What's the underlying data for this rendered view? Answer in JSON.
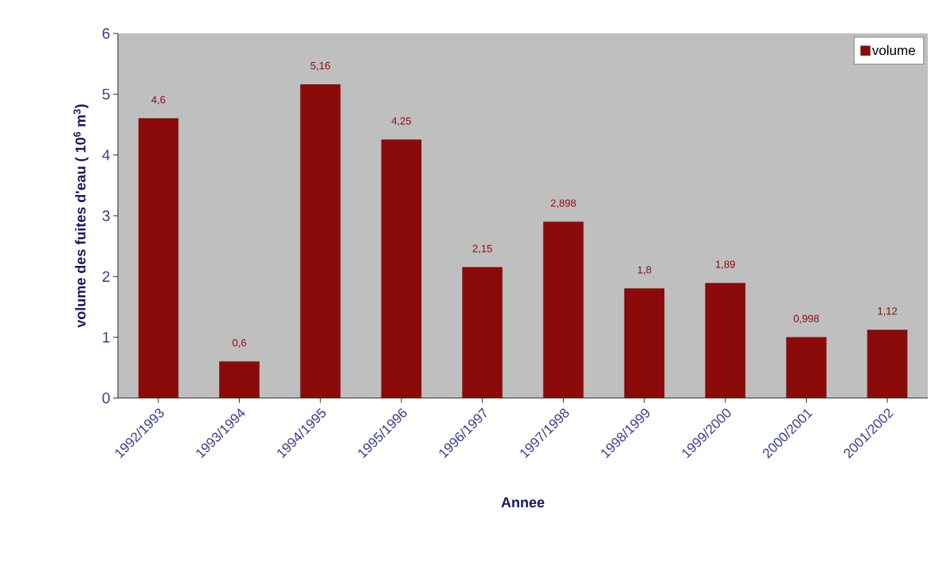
{
  "chart_data": {
    "type": "bar",
    "xlabel": "Annee",
    "ylabel": "volume des fuites d'eau ( 10$^{6}$ m$^{3}$)",
    "categories": [
      "1992/1993",
      "1993/1994",
      "1994/1995",
      "1995/1996",
      "1996/1997",
      "1997/1998",
      "1998/1999",
      "1999/2000",
      "2000/2001",
      "2001/2002"
    ],
    "series": [
      {
        "name": "volume",
        "color": "#8b0a0a",
        "values": [
          4.6,
          0.6,
          5.16,
          4.25,
          2.15,
          2.898,
          1.8,
          1.89,
          0.998,
          1.12
        ],
        "value_labels": [
          "4,6",
          "0,6",
          "5,16",
          "4,25",
          "2,15",
          "2,898",
          "1,8",
          "1,89",
          "0,998",
          "1,12"
        ]
      }
    ],
    "ylim": [
      0,
      6
    ],
    "yticks": [
      0,
      1,
      2,
      3,
      4,
      5,
      6
    ],
    "grid": false,
    "legend": "top right"
  }
}
